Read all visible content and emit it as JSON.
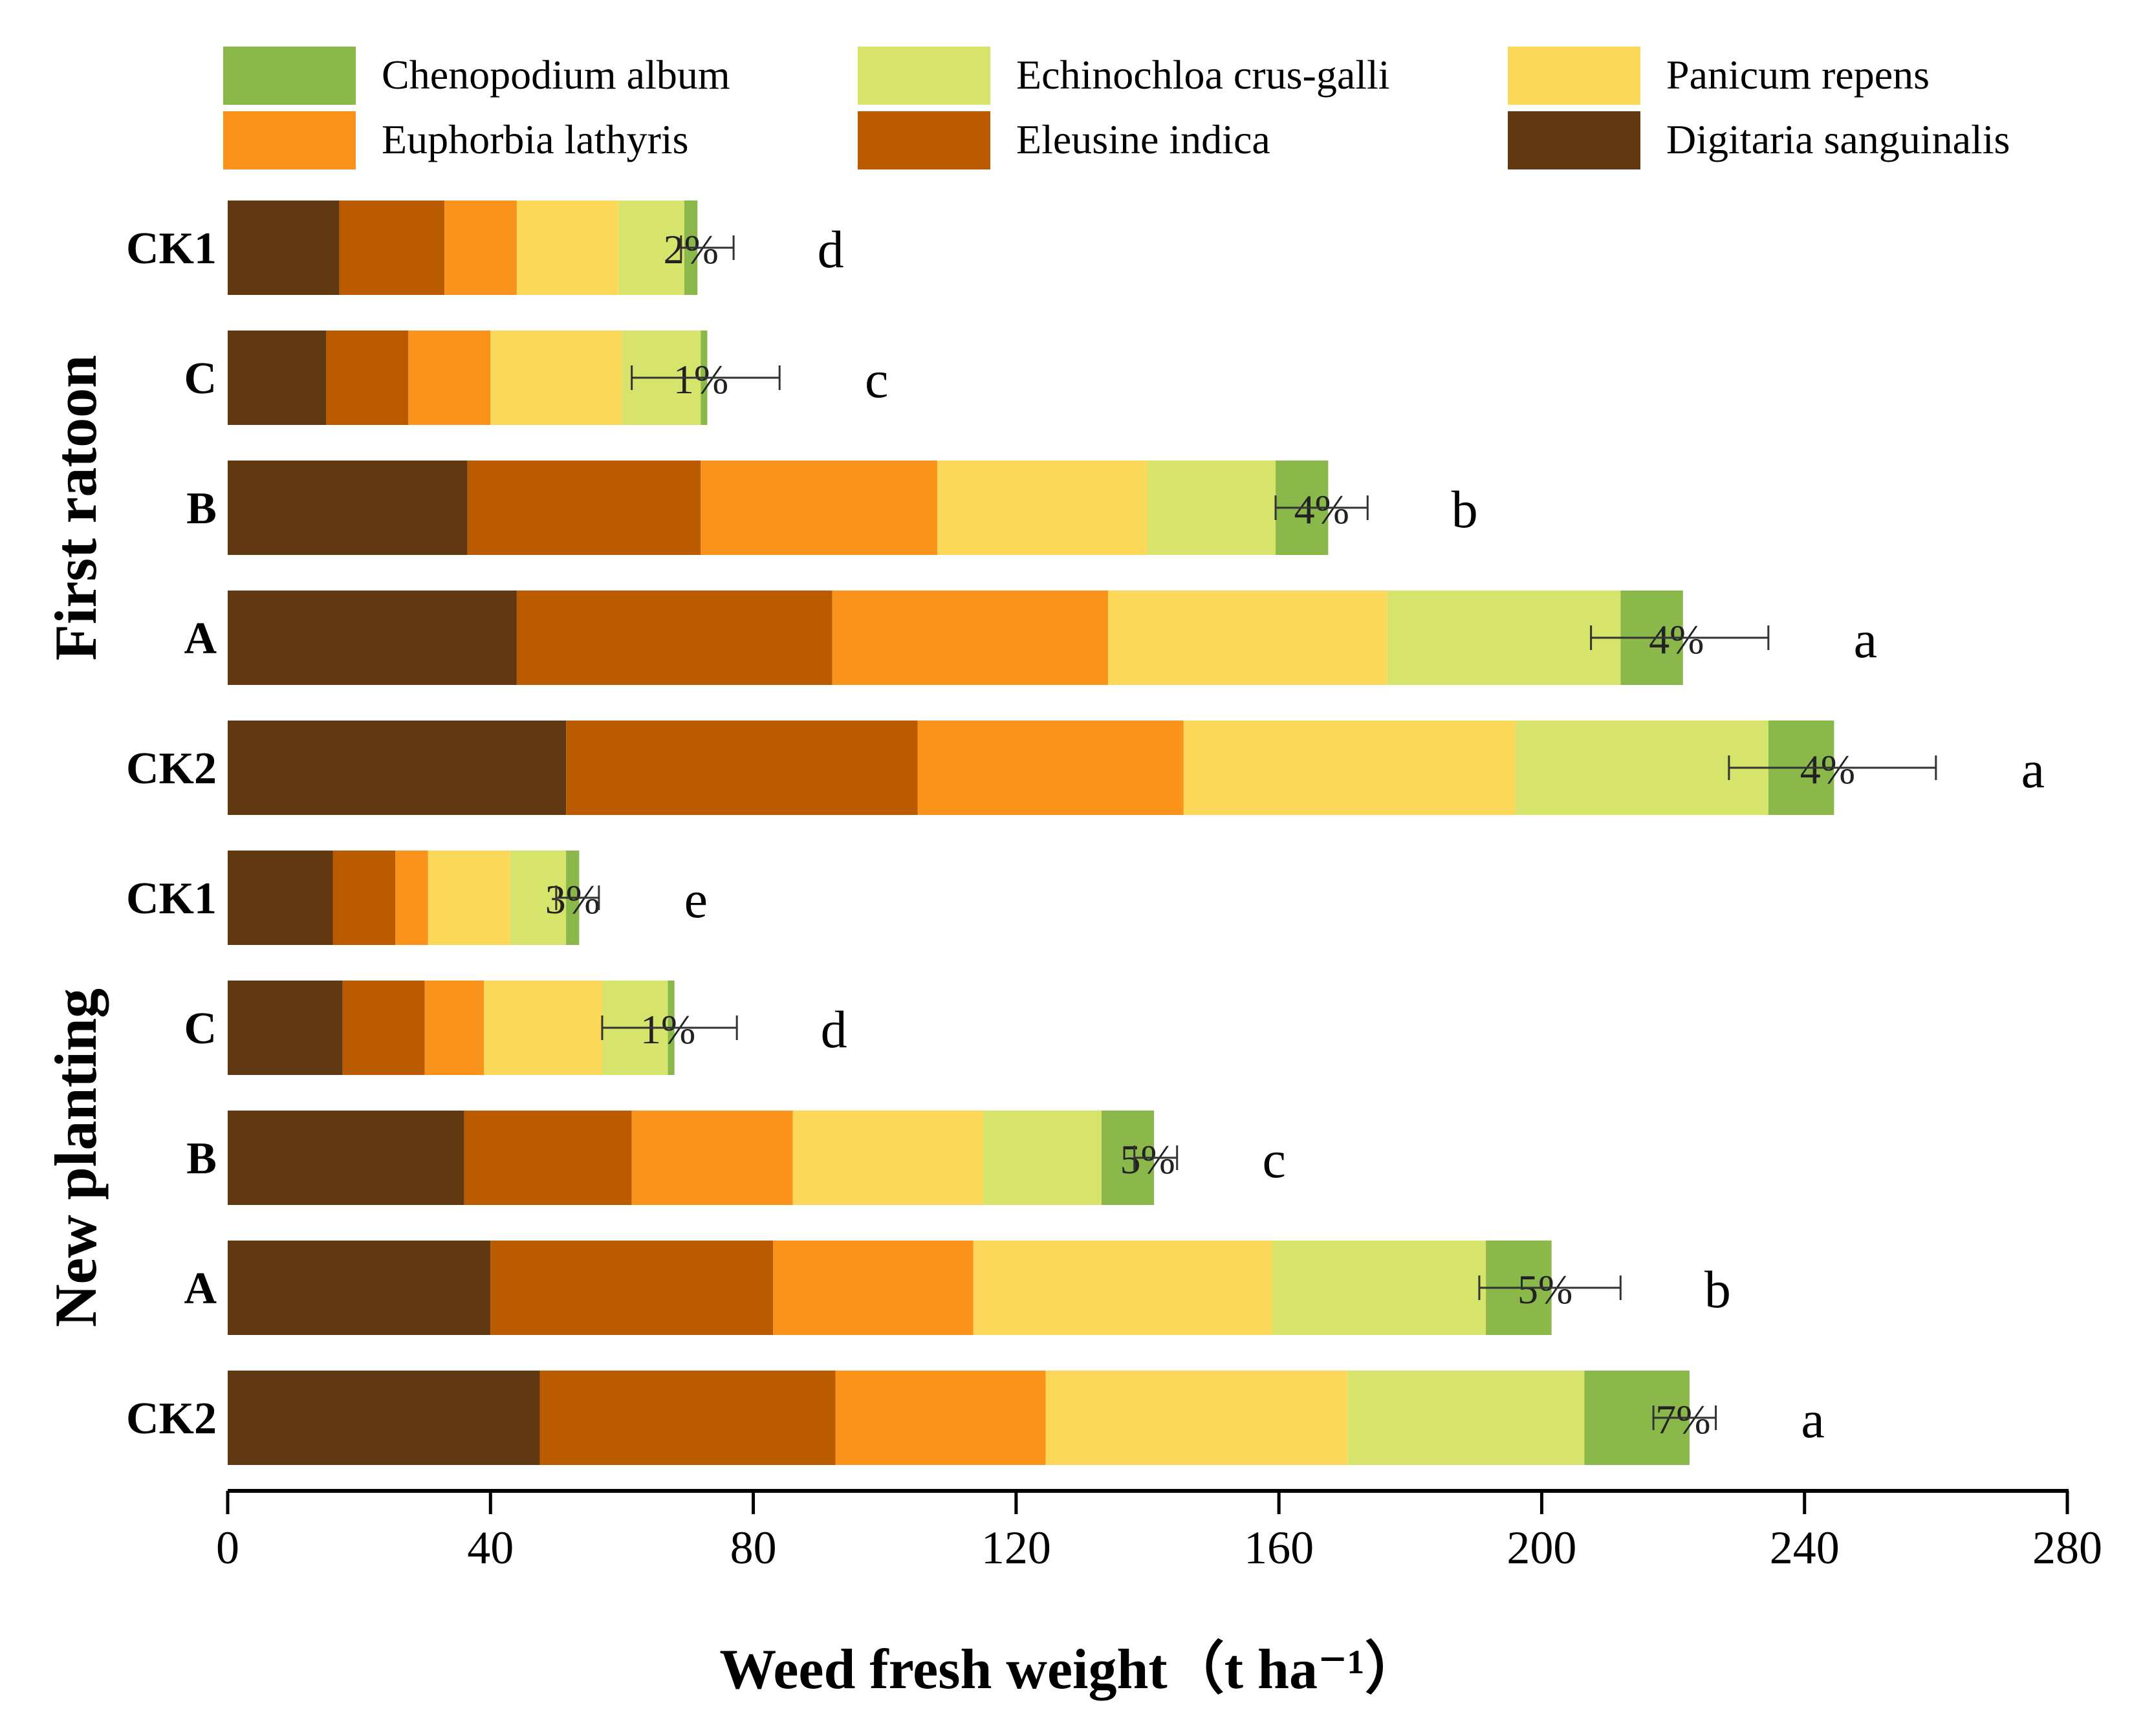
{
  "chart_data": {
    "type": "bar",
    "orientation": "horizontal",
    "stacked": true,
    "xlabel": "Weed fresh weight",
    "xlabel_unit": "（t ha⁻¹）",
    "xlim": [
      0,
      280
    ],
    "xticks": [
      "0",
      "40",
      "80",
      "120",
      "160",
      "200",
      "240",
      "280"
    ],
    "groups": [
      {
        "name": "First ratoon",
        "rows": [
          {
            "label": "CK1",
            "values": [
              17,
              16,
              11,
              15.5,
              10,
              2
            ],
            "pct": "2%",
            "err_low": 69,
            "err_high": 77,
            "letter": "d"
          },
          {
            "label": "C",
            "values": [
              15,
              12.5,
              12.5,
              20,
              12,
              1
            ],
            "pct": "1%",
            "err_low": 61.5,
            "err_high": 84,
            "letter": "c"
          },
          {
            "label": "B",
            "values": [
              36.5,
              35.5,
              36,
              32,
              19.5,
              8
            ],
            "pct": "4%",
            "err_low": 159.5,
            "err_high": 173.5,
            "letter": "b"
          },
          {
            "label": "A",
            "values": [
              44,
              48,
              42,
              42.5,
              35.5,
              9.5
            ],
            "pct": "4%",
            "err_low": 207.5,
            "err_high": 234.5,
            "letter": "a"
          },
          {
            "label": "CK2",
            "values": [
              51.5,
              53.5,
              40.5,
              50.5,
              38.5,
              10
            ],
            "pct": "4%",
            "err_low": 228.5,
            "err_high": 260,
            "letter": "a"
          }
        ]
      },
      {
        "name": "New planting",
        "rows": [
          {
            "label": "CK1",
            "values": [
              16,
              9.5,
              5,
              12.5,
              8.5,
              2
            ],
            "pct": "3%",
            "err_low": 50,
            "err_high": 56.5,
            "letter": "e"
          },
          {
            "label": "C",
            "values": [
              17.5,
              12.5,
              9,
              18,
              10,
              1
            ],
            "pct": "1%",
            "err_low": 57,
            "err_high": 77.5,
            "letter": "d"
          },
          {
            "label": "B",
            "values": [
              36,
              25.5,
              24.5,
              29,
              18,
              8
            ],
            "pct": "5%",
            "err_low": 138,
            "err_high": 144.5,
            "letter": "c"
          },
          {
            "label": "A",
            "values": [
              40,
              43,
              30.5,
              45.5,
              32.5,
              10
            ],
            "pct": "5%",
            "err_low": 190.5,
            "err_high": 212,
            "letter": "b"
          },
          {
            "label": "CK2",
            "values": [
              47.5,
              45,
              32,
              46,
              36,
              16
            ],
            "pct": "7%",
            "err_low": 217,
            "err_high": 226.5,
            "letter": "a"
          }
        ]
      }
    ],
    "series": [
      {
        "name": "Digitaria sanguinalis",
        "color": "#603913"
      },
      {
        "name": "Eleusine indica",
        "color": "#bb5b00"
      },
      {
        "name": "Euphorbia lathyris",
        "color": "#f9931c"
      },
      {
        "name": "Panicum repens",
        "color": "#fcd85a"
      },
      {
        "name": "Echinochloa crus-galli",
        "color": "#d6e46c"
      },
      {
        "name": "Chenopodium album",
        "color": "#8ab84a"
      }
    ],
    "legend_order": [
      "Chenopodium album",
      "Echinochloa crus-galli",
      "Panicum repens",
      "Euphorbia lathyris",
      "Eleusine indica",
      "Digitaria sanguinalis"
    ],
    "legend_position": "top"
  }
}
